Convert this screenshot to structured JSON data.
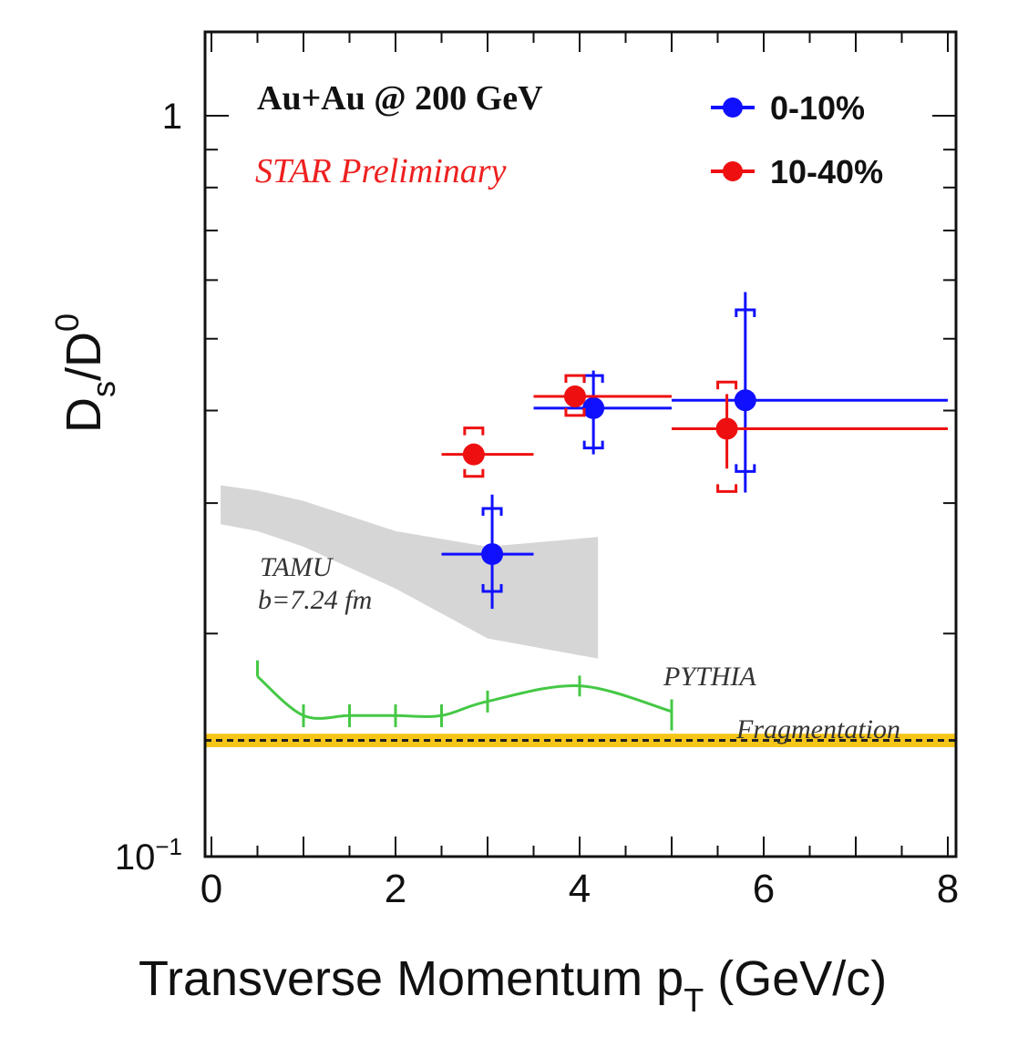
{
  "chart_data": {
    "type": "scatter",
    "xlabel": "Transverse Momentum p",
    "xlabel_sub": "T",
    "xlabel_unit": " (GeV/c)",
    "ylabel_main": "D",
    "ylabel_sub": "s",
    "ylabel_slash": "/D",
    "ylabel_sup": "0",
    "xlim": [
      0,
      8
    ],
    "ylim": [
      0.1,
      1.25
    ],
    "yscale": "log",
    "x_tick_labels": [
      {
        "v": 0,
        "t": "0"
      },
      {
        "v": 2,
        "t": "2"
      },
      {
        "v": 4,
        "t": "4"
      },
      {
        "v": 6,
        "t": "6"
      },
      {
        "v": 8,
        "t": "8"
      }
    ],
    "y_tick_labels": [
      {
        "v": 1,
        "t": "1"
      },
      {
        "v": 0.1,
        "base": "10",
        "exp": "−1"
      }
    ],
    "annotations": {
      "collision": "Au+Au @ 200 GeV",
      "preliminary": "STAR Preliminary",
      "tamu_line1": "TAMU",
      "tamu_line2": "b=7.24 fm",
      "pythia_line1": "PYTHIA",
      "pythia_line2": "Fragmentation"
    },
    "legend_position": "top-right",
    "series": [
      {
        "name": "0-10%",
        "color": "#1010ff",
        "points": [
          {
            "x": 3.05,
            "y": 0.256,
            "xlo": 2.5,
            "xhi": 3.5,
            "ylo": 0.216,
            "yhi": 0.308,
            "slo": 0.228,
            "shi": 0.295
          },
          {
            "x": 4.15,
            "y": 0.403,
            "xlo": 3.5,
            "xhi": 5.0,
            "ylo": 0.349,
            "yhi": 0.453,
            "slo": 0.356,
            "shi": 0.446
          },
          {
            "x": 5.8,
            "y": 0.413,
            "xlo": 5.0,
            "xhi": 8.0,
            "ylo": 0.31,
            "yhi": 0.578,
            "slo": 0.331,
            "shi": 0.547
          }
        ]
      },
      {
        "name": "10-40%",
        "color": "#ee1010",
        "points": [
          {
            "x": 2.85,
            "y": 0.349,
            "xlo": 2.5,
            "xhi": 3.5,
            "ylo": 0.349,
            "yhi": 0.349,
            "slo": 0.326,
            "shi": 0.379
          },
          {
            "x": 3.95,
            "y": 0.418,
            "xlo": 3.5,
            "xhi": 5.0,
            "ylo": 0.418,
            "yhi": 0.418,
            "slo": 0.394,
            "shi": 0.446
          },
          {
            "x": 5.6,
            "y": 0.378,
            "xlo": 5.0,
            "xhi": 8.0,
            "ylo": 0.334,
            "yhi": 0.421,
            "slo": 0.311,
            "shi": 0.437
          }
        ]
      }
    ],
    "pythia": {
      "color": "#45c845",
      "points": [
        {
          "x": 0.5,
          "y": 0.175
        },
        {
          "x": 1.0,
          "y": 0.155
        },
        {
          "x": 1.5,
          "y": 0.155
        },
        {
          "x": 2.0,
          "y": 0.155
        },
        {
          "x": 2.5,
          "y": 0.155
        },
        {
          "x": 3.0,
          "y": 0.162
        },
        {
          "x": 4.0,
          "y": 0.17
        },
        {
          "x": 5.0,
          "y": 0.157
        }
      ],
      "err_hi": 0.184,
      "err_lo": 0.148,
      "err_half": 0.0055
    },
    "tamu_band": {
      "color": "#cfcfcf",
      "upper": [
        {
          "x": 0.1,
          "y": 0.317
        },
        {
          "x": 0.5,
          "y": 0.312
        },
        {
          "x": 1.0,
          "y": 0.302
        },
        {
          "x": 2.0,
          "y": 0.275
        },
        {
          "x": 3.0,
          "y": 0.262
        },
        {
          "x": 4.2,
          "y": 0.27
        }
      ],
      "lower": [
        {
          "x": 4.2,
          "y": 0.185
        },
        {
          "x": 3.0,
          "y": 0.197
        },
        {
          "x": 2.0,
          "y": 0.23
        },
        {
          "x": 1.0,
          "y": 0.262
        },
        {
          "x": 0.5,
          "y": 0.275
        },
        {
          "x": 0.1,
          "y": 0.281
        }
      ]
    },
    "reference_band": {
      "color": "#f5c518",
      "line_color": "#222222",
      "y": 0.1435,
      "ylo": 0.1405,
      "yhi": 0.1465
    }
  }
}
